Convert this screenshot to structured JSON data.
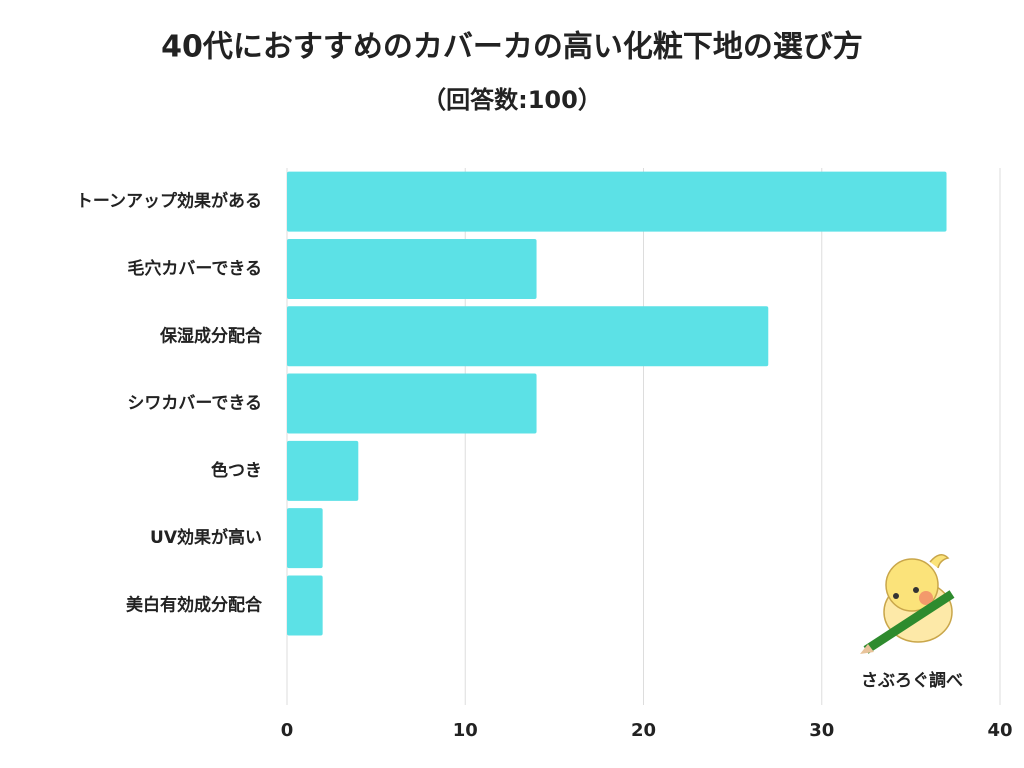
{
  "chart_data": {
    "type": "bar",
    "orientation": "horizontal",
    "title": "40代におすすめのカバーカの高い化粧下地の選び方",
    "subtitle": "（回答数:100）",
    "categories": [
      "トーンアップ効果がある",
      "毛穴カバーできる",
      "保湿成分配合",
      "シワカバーできる",
      "色つき",
      "UV効果が高い",
      "美白有効成分配合"
    ],
    "values": [
      37,
      14,
      27,
      14,
      4,
      2,
      2
    ],
    "color": "#5ce1e6",
    "xlim": [
      0,
      40
    ],
    "xticks": [
      0,
      10,
      20,
      30,
      40
    ],
    "grid": true,
    "credit": "さぶろぐ調べ"
  }
}
